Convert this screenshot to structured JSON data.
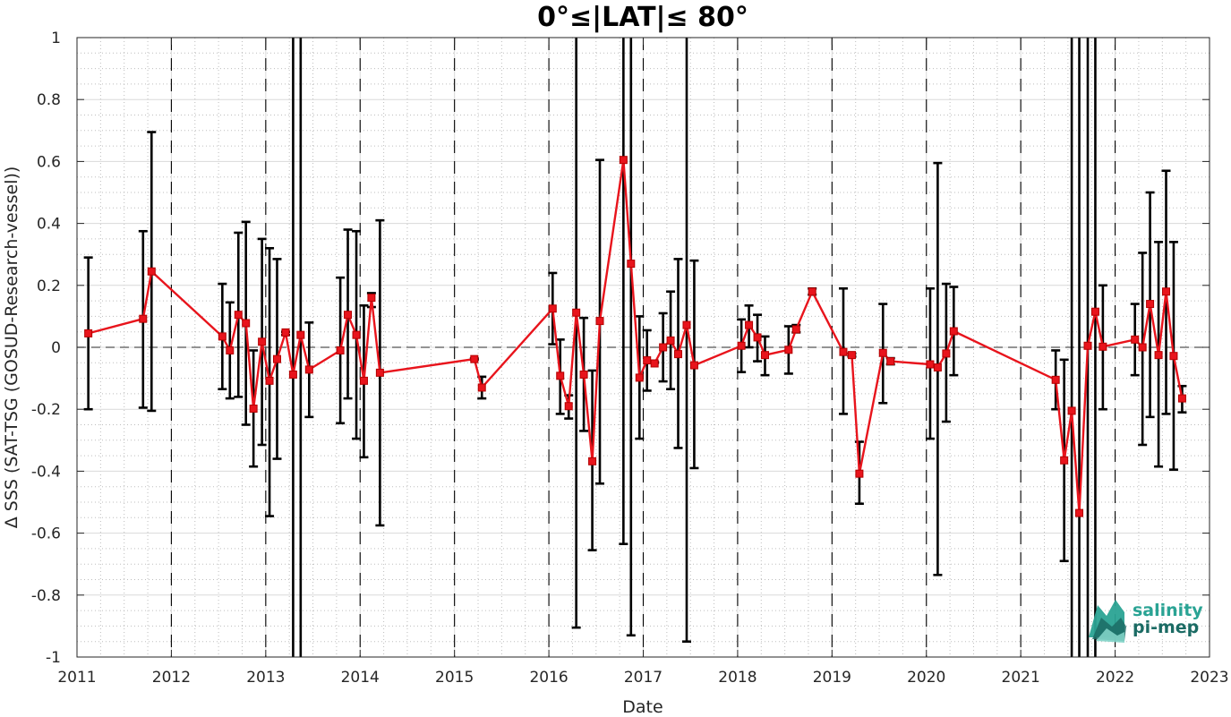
{
  "colors": {
    "series": "#e8141c",
    "errorbar": "#000000",
    "zero_line": "#555555",
    "year_line": "#000000",
    "grid_major": "#d9d9d9",
    "grid_minor": "#bdbdbd",
    "axis": "#262626",
    "logo_teal": "#2aa394",
    "logo_dark": "#1b6b64"
  },
  "chart_data": {
    "type": "line",
    "title": "0°≤|LAT|≤ 80°",
    "xlabel": "Date",
    "ylabel": "Δ SSS (SAT-TSG (GOSUD-Research-vessel))",
    "xlim": [
      2011,
      2023
    ],
    "ylim": [
      -1,
      1
    ],
    "xticks": [
      "2011",
      "2012",
      "2013",
      "2014",
      "2015",
      "2016",
      "2017",
      "2018",
      "2019",
      "2020",
      "2021",
      "2022",
      "2023"
    ],
    "yticks": [
      "-1",
      "-0.8",
      "-0.6",
      "-0.4",
      "-0.2",
      "0",
      "0.2",
      "0.4",
      "0.6",
      "0.8",
      "1"
    ],
    "grid": "major and minor",
    "reference_line_y": 0,
    "year_dividers": [
      "2012",
      "2013",
      "2014",
      "2015",
      "2016",
      "2017",
      "2018",
      "2019",
      "2020",
      "2021",
      "2022"
    ],
    "series": [
      {
        "x": [
          2011.12,
          2011.7,
          2011.79,
          2012.54,
          2012.62,
          2012.71,
          2012.79,
          2012.87,
          2012.96,
          2013.04,
          2013.12,
          2013.21,
          2013.29,
          2013.37,
          2013.46,
          2013.79,
          2013.87,
          2013.96,
          2014.04,
          2014.12,
          2014.21,
          2015.21,
          2015.29,
          2016.04,
          2016.12,
          2016.21,
          2016.29,
          2016.37,
          2016.46,
          2016.54,
          2016.79,
          2016.87,
          2016.96,
          2017.04,
          2017.12,
          2017.21,
          2017.29,
          2017.37,
          2017.46,
          2017.54,
          2018.04,
          2018.12,
          2018.21,
          2018.29,
          2018.54,
          2018.62,
          2018.79,
          2019.12,
          2019.21,
          2019.29,
          2019.54,
          2019.62,
          2020.04,
          2020.12,
          2020.21,
          2020.29,
          2021.37,
          2021.46,
          2021.54,
          2021.62,
          2021.71,
          2021.79,
          2021.87,
          2022.21,
          2022.29,
          2022.37,
          2022.46,
          2022.54,
          2022.62,
          2022.71
        ],
        "y": [
          0.045,
          0.092,
          0.245,
          0.035,
          -0.01,
          0.105,
          0.078,
          -0.198,
          0.018,
          -0.108,
          -0.038,
          0.048,
          -0.088,
          0.04,
          -0.072,
          -0.01,
          0.105,
          0.04,
          -0.108,
          0.16,
          -0.082,
          -0.038,
          -0.13,
          0.125,
          -0.092,
          -0.19,
          0.112,
          -0.088,
          -0.368,
          0.085,
          0.605,
          0.27,
          -0.098,
          -0.042,
          -0.052,
          0.0,
          0.022,
          -0.022,
          0.072,
          -0.058,
          0.005,
          0.072,
          0.032,
          -0.025,
          -0.008,
          0.058,
          0.18,
          -0.015,
          -0.025,
          -0.408,
          -0.018,
          -0.045,
          -0.055,
          -0.065,
          -0.02,
          0.052,
          -0.105,
          -0.365,
          -0.205,
          -0.535,
          0.005,
          0.115,
          0.002,
          0.025,
          0.0,
          0.14,
          -0.025,
          0.18,
          -0.028,
          -0.165
        ],
        "err_low": [
          -0.2,
          -0.195,
          -0.205,
          -0.135,
          -0.165,
          -0.16,
          -0.25,
          -0.385,
          -0.315,
          -0.545,
          -0.36,
          0.04,
          -1.0,
          -1.0,
          -0.225,
          -0.245,
          -0.165,
          -0.295,
          -0.355,
          0.13,
          -0.575,
          -0.04,
          -0.165,
          0.01,
          -0.215,
          -0.23,
          -0.905,
          -0.27,
          -0.655,
          -0.44,
          -0.635,
          -0.93,
          -0.295,
          -0.14,
          -0.05,
          -0.11,
          -0.135,
          -0.325,
          -0.95,
          -0.39,
          -0.08,
          0.0,
          -0.045,
          -0.09,
          -0.085,
          0.048,
          0.17,
          -0.215,
          -0.03,
          -0.505,
          -0.18,
          -0.055,
          -0.295,
          -0.735,
          -0.24,
          -0.09,
          -0.2,
          -0.69,
          -1.0,
          -1.0,
          -1.0,
          -1.0,
          -0.2,
          -0.09,
          -0.315,
          -0.225,
          -0.385,
          -0.215,
          -0.395,
          -0.21
        ],
        "err_high": [
          0.29,
          0.375,
          0.695,
          0.205,
          0.145,
          0.37,
          0.405,
          -0.01,
          0.35,
          0.32,
          0.285,
          0.05,
          1.0,
          1.0,
          0.08,
          0.225,
          0.38,
          0.375,
          0.135,
          0.175,
          0.41,
          -0.036,
          -0.095,
          0.24,
          0.025,
          -0.155,
          1.0,
          0.095,
          -0.075,
          0.605,
          1.0,
          1.0,
          0.1,
          0.055,
          -0.048,
          0.11,
          0.18,
          0.285,
          1.0,
          0.28,
          0.09,
          0.135,
          0.105,
          0.035,
          0.068,
          0.072,
          0.19,
          0.19,
          -0.02,
          -0.305,
          0.14,
          -0.035,
          0.19,
          0.595,
          0.205,
          0.195,
          -0.01,
          -0.04,
          1.0,
          1.0,
          1.0,
          1.0,
          0.2,
          0.14,
          0.305,
          0.5,
          0.34,
          0.57,
          0.34,
          -0.125
        ]
      }
    ]
  },
  "logo": {
    "line1": "salinity",
    "line2": "pi-mep"
  }
}
